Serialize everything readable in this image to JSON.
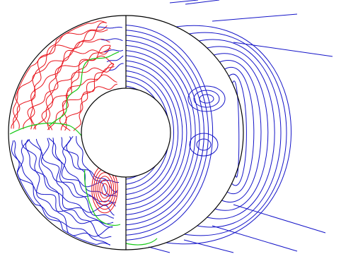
{
  "figure": {
    "description_visible_text": "",
    "colors": {
      "positive": "#e8141c",
      "negative": "#1414c8",
      "zero": "#14c814",
      "boundary": "#000000",
      "background": "#ffffff"
    },
    "left_half": {
      "content": "contours-in-shell",
      "northern_region_sign": "positive",
      "equatorial_and_southern_region_sign": "negative",
      "southern_patch_sign": "positive"
    },
    "right_half": {
      "content": "field-lines",
      "line_color_key": "negative",
      "extends_outside_shell": true
    }
  }
}
